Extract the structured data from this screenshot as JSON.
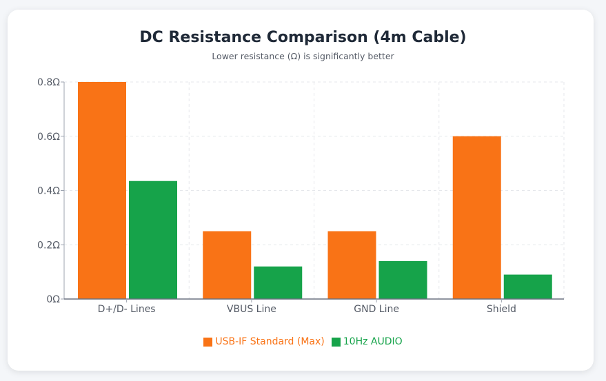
{
  "chart_data": {
    "type": "bar",
    "title": "DC Resistance Comparison (4m Cable)",
    "subtitle": "Lower resistance (Ω) is significantly better",
    "categories": [
      "D+/D- Lines",
      "VBUS Line",
      "GND Line",
      "Shield"
    ],
    "series": [
      {
        "name": "USB-IF Standard (Max)",
        "color": "#f97316",
        "values": [
          0.8,
          0.25,
          0.25,
          0.6
        ]
      },
      {
        "name": "10Hz AUDIO",
        "color": "#16a34a",
        "values": [
          0.435,
          0.12,
          0.14,
          0.09
        ]
      }
    ],
    "xlabel": "",
    "ylabel": "",
    "ylim": [
      0,
      0.8
    ],
    "yticks": [
      {
        "value": 0,
        "label": "0Ω"
      },
      {
        "value": 0.2,
        "label": "0.2Ω"
      },
      {
        "value": 0.4,
        "label": "0.4Ω"
      },
      {
        "value": 0.6,
        "label": "0.6Ω"
      },
      {
        "value": 0.8,
        "label": "0.8Ω"
      }
    ],
    "grid": true,
    "legend": "bottom"
  }
}
